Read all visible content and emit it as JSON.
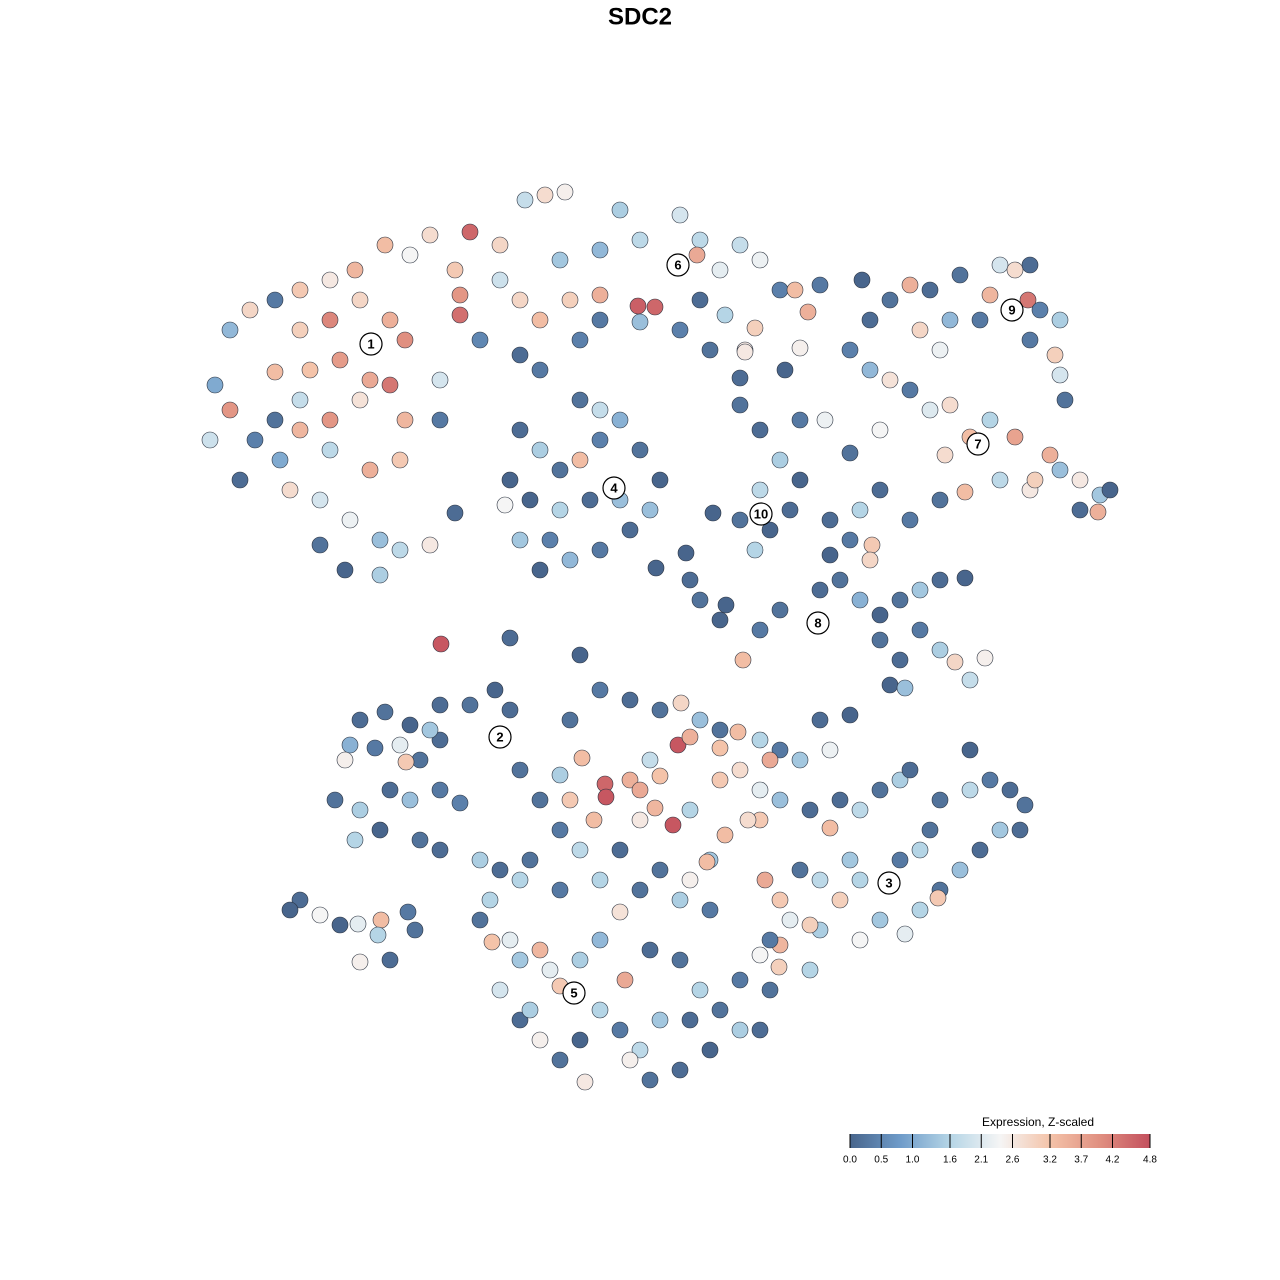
{
  "chart_data": {
    "type": "scatter",
    "title": "SDC2",
    "xlim": [
      0,
      128
    ],
    "ylim": [
      0,
      128
    ],
    "x": [
      23,
      25,
      27.5,
      30,
      33,
      35.5,
      38.5,
      41,
      43,
      30,
      33,
      36,
      39,
      40.5,
      34,
      37,
      39,
      31,
      27.5,
      30,
      33,
      36,
      40.5,
      21.5,
      23,
      21,
      24,
      28,
      30,
      33,
      37,
      40,
      32,
      35,
      38,
      32,
      34.5,
      38,
      40,
      43,
      29,
      44,
      25.5,
      44,
      27.5,
      47,
      50,
      52.5,
      54.5,
      56.5,
      45.5,
      46,
      46,
      50,
      52,
      54,
      57,
      60,
      62,
      64,
      63.8,
      65.5,
      68,
      70,
      69.7,
      72,
      74,
      76,
      78,
      79.5,
      80.8,
      82,
      70,
      72.5,
      75.5,
      60,
      64,
      68,
      71,
      74.5,
      80,
      54,
      58,
      52,
      48,
      56,
      60,
      52,
      54,
      56,
      58,
      60,
      62,
      64,
      66,
      65,
      63,
      60,
      57,
      54,
      52,
      50.5,
      51,
      56,
      59,
      62,
      58,
      60,
      53,
      55,
      74,
      76,
      78,
      80,
      76,
      74,
      77,
      79,
      75.5,
      80,
      82.5,
      100,
      101.5,
      103,
      102.8,
      99,
      96,
      93,
      91,
      92,
      95,
      98,
      104,
      106,
      105.5,
      103,
      87,
      89,
      86.2,
      106,
      106.5,
      94,
      85,
      87,
      89,
      91,
      93,
      95,
      97,
      99,
      101.5,
      105,
      106,
      108,
      110,
      111,
      109.8,
      108,
      103,
      100,
      96.5,
      94,
      91,
      88,
      86,
      85,
      88,
      94.5,
      103.5,
      83,
      85,
      87.2,
      87,
      84,
      86,
      88,
      90,
      92,
      94,
      96.5,
      92,
      94,
      95.5,
      97,
      98.5,
      90,
      88,
      89,
      90.5,
      83,
      82,
      78,
      76,
      74.3,
      72,
      70,
      69,
      72.6,
      36,
      38.5,
      41,
      44,
      47,
      49.5,
      35,
      37.5,
      40,
      42,
      44,
      34.5,
      40.6,
      33.5,
      36,
      39,
      41,
      44,
      35.5,
      38,
      42,
      44,
      46,
      48,
      30,
      32,
      34,
      35.8,
      38.1,
      37.8,
      36,
      39,
      40.8,
      41.5,
      29,
      51,
      52,
      43,
      57,
      60,
      63,
      66,
      68.1,
      70,
      72,
      73.8,
      76,
      78,
      80,
      82,
      85,
      83,
      67.8,
      69,
      72,
      65,
      63,
      60.5,
      60.6,
      58.2,
      56,
      54,
      57,
      64,
      66,
      65.5,
      67.3,
      69,
      72,
      74,
      76,
      77,
      78,
      81,
      76,
      74.8,
      72.5,
      71,
      69,
      66,
      62,
      59.4,
      58,
      56,
      53,
      70.7,
      64,
      84,
      86,
      88,
      90,
      91,
      94,
      97,
      97,
      99,
      101,
      102.5,
      100,
      98,
      96,
      94,
      93.8,
      92,
      90.5,
      88,
      86,
      84,
      82,
      80,
      78,
      79,
      82,
      78,
      77.9,
      81,
      77,
      76,
      93,
      92,
      86,
      90,
      83,
      102,
      81,
      76.5,
      85,
      49,
      48,
      49.2,
      51,
      50,
      52,
      54,
      55,
      56,
      58,
      60,
      62,
      62.5,
      65,
      68,
      70,
      72,
      74,
      76,
      71,
      68,
      65,
      64,
      62,
      60,
      58.5,
      56,
      54,
      52,
      53,
      58,
      66,
      69,
      74,
      77,
      50,
      52,
      56,
      60,
      64,
      68,
      71,
      63,
      44.1,
      51,
      58,
      45.5,
      65.6,
      68.6,
      71.3,
      74,
      78.5,
      74.5
    ],
    "y": [
      95,
      97,
      98,
      99,
      100,
      101,
      103.5,
      102.5,
      104.5,
      95,
      96,
      98,
      96,
      94,
      92,
      90,
      89.5,
      91,
      90.8,
      88,
      86,
      88,
      86,
      89.5,
      87,
      84,
      80,
      82,
      85,
      83,
      81,
      82,
      78,
      76,
      74,
      73.5,
      71,
      70.5,
      73,
      73.5,
      79,
      86,
      84,
      90,
      86,
      104.8,
      103.5,
      108,
      108.5,
      108.8,
      101,
      96.5,
      98.5,
      100,
      98,
      96,
      98,
      103,
      107,
      104,
      97.4,
      97.3,
      106.5,
      104,
      102.5,
      101,
      103.5,
      102,
      99,
      99,
      96.8,
      99.5,
      98,
      96.5,
      95.2,
      96,
      95.8,
      95,
      93,
      93,
      93.2,
      91,
      94,
      92.5,
      94,
      102,
      98.5,
      85,
      83,
      81,
      82,
      84,
      86,
      83,
      80,
      77,
      75,
      73,
      72,
      71,
      74,
      77.5,
      80,
      77,
      78,
      78,
      88,
      87,
      78,
      74,
      87.5,
      85,
      82,
      80,
      79,
      76,
      75,
      77,
      73,
      86,
      86,
      101.5,
      101,
      101.5,
      98,
      98.5,
      100.5,
      99,
      99.5,
      95,
      96,
      96,
      97,
      96,
      92.5,
      94,
      96,
      98,
      100,
      90.5,
      88,
      93,
      93,
      91,
      90,
      89,
      87,
      87.5,
      84.3,
      86,
      84.3,
      82.5,
      81,
      80,
      78.5,
      79,
      76.8,
      77,
      79,
      80,
      78.8,
      78,
      76,
      79,
      77,
      82.7,
      85,
      82.5,
      80,
      76,
      74,
      73.5,
      72,
      70,
      68,
      66.5,
      68,
      69,
      70,
      70.2,
      65,
      63,
      61.8,
      60,
      62.2,
      62,
      64,
      59.5,
      59.2,
      72.5,
      69,
      67,
      65,
      62,
      66,
      68,
      70,
      67.5,
      56,
      56.8,
      55.5,
      57.5,
      57.5,
      59,
      53.5,
      53.2,
      53.5,
      52,
      54,
      52,
      51.8,
      48,
      47,
      49,
      48,
      49,
      44,
      45,
      44,
      43,
      47.7,
      42,
      38,
      36.5,
      35.5,
      35.6,
      36,
      34.5,
      31.8,
      32,
      36.8,
      35,
      37,
      57,
      51,
      55,
      56,
      59,
      58,
      57,
      57.7,
      56,
      55,
      54.8,
      54,
      53,
      52,
      56,
      56.5,
      53,
      53.5,
      54.3,
      53.2,
      52,
      50,
      49.6,
      48.3,
      52.2,
      50.5,
      48,
      48,
      49,
      50.4,
      47.2,
      45.5,
      47,
      50,
      51,
      49,
      52,
      48,
      47,
      46,
      46,
      44.5,
      42,
      40,
      41,
      43,
      46,
      43,
      45,
      42,
      41.8,
      46,
      48,
      47,
      49,
      50,
      51,
      48,
      49,
      53,
      50,
      49,
      47.5,
      45,
      43,
      41,
      39,
      38.2,
      37,
      34.6,
      36,
      34,
      38,
      40,
      41,
      38,
      36,
      35,
      33.5,
      31.3,
      31,
      34,
      32.5,
      45,
      43,
      40,
      42,
      45.2,
      45,
      35.5,
      40,
      42,
      38,
      36,
      33.8,
      34,
      29,
      32,
      33,
      31,
      29.4,
      32,
      34,
      36.8,
      30,
      33,
      32,
      29,
      27,
      25,
      25,
      23,
      21,
      20,
      23,
      25,
      27,
      19.8,
      22,
      24,
      26,
      27,
      24,
      26,
      26,
      30,
      29,
      41,
      40,
      39,
      40,
      39,
      38,
      37,
      22,
      63.6,
      64.2,
      62.5,
      76.7,
      71.2,
      72.7,
      76.7,
      90.2,
      91,
      92.8
    ],
    "values": [
      1.2,
      2.9,
      0.3,
      3.1,
      2.6,
      3.4,
      3.3,
      2.4,
      2.8,
      3.0,
      4.1,
      2.9,
      3.5,
      4.0,
      3.8,
      3.6,
      4.3,
      3.2,
      3.3,
      1.8,
      3.9,
      2.7,
      3.4,
      1.0,
      3.9,
      1.9,
      0.1,
      1.0,
      3.4,
      1.7,
      3.5,
      3.1,
      2.0,
      2.3,
      1.3,
      0.2,
      0.0,
      1.5,
      1.7,
      2.6,
      2.8,
      0.3,
      0.4,
      2.0,
      0.2,
      4.5,
      2.9,
      1.8,
      2.8,
      2.5,
      3.1,
      4.4,
      3.9,
      1.9,
      2.9,
      3.3,
      3.0,
      1.2,
      1.5,
      1.7,
      4.6,
      4.5,
      2.0,
      1.7,
      3.6,
      2.2,
      1.8,
      2.3,
      0.4,
      3.3,
      3.5,
      0.3,
      0.1,
      1.6,
      3.0,
      0.3,
      1.3,
      0.4,
      0.2,
      2.6,
      2.5,
      0.3,
      0.4,
      0.1,
      0.5,
      1.4,
      3.5,
      0.1,
      1.5,
      0.2,
      3.3,
      0.4,
      1.1,
      0.2,
      0.0,
      1.3,
      0.1,
      0.3,
      1.2,
      0.0,
      1.4,
      2.4,
      0.0,
      1.6,
      0.1,
      1.3,
      0.2,
      1.8,
      0.0,
      0.4,
      0.2,
      0.1,
      1.5,
      0.0,
      1.7,
      0.2,
      0.0,
      0.1,
      1.6,
      0.3,
      2.3,
      2.0,
      2.8,
      0.1,
      4.3,
      3.4,
      0.2,
      0.1,
      3.5,
      2.9,
      1.2,
      0.3,
      0.4,
      1.5,
      3.0,
      0.3,
      0.1,
      0.2,
      0.0,
      2.0,
      0.2,
      2.3,
      0.4,
      1.2,
      2.7,
      0.3,
      2.1,
      2.8,
      3.3,
      1.6,
      3.7,
      3.5,
      1.3,
      2.6,
      1.4,
      0.0,
      3.5,
      0.1,
      2.6,
      1.7,
      3.3,
      0.2,
      0.3,
      0.1,
      1.6,
      0.2,
      2.4,
      2.8,
      3.0,
      0.1,
      0.3,
      3.1,
      2.9,
      0.2,
      1.1,
      0.0,
      0.2,
      1.4,
      0.1,
      0.0,
      0.3,
      1.5,
      2.9,
      1.8,
      2.5,
      0.1,
      0.2,
      0.0,
      1.3,
      0.0,
      0.1,
      0.2,
      0.3,
      3.3,
      0.0,
      0.2,
      0.1,
      0.0,
      0.1,
      0.2,
      0.0,
      0.1,
      0.2,
      0.0,
      1.1,
      0.3,
      2.2,
      0.2,
      0.1,
      2.5,
      3.1,
      0.2,
      1.5,
      0.1,
      1.3,
      0.3,
      1.6,
      0.0,
      0.2,
      0.1,
      0.4,
      1.5,
      0.1,
      2.4,
      0.0,
      2.2,
      3.3,
      1.6,
      2.5,
      0.1,
      0.3,
      0.2,
      0.0,
      0.1,
      0.2,
      1.4,
      0.2,
      0.3,
      0.1,
      0.2,
      2.9,
      1.3,
      0.2,
      3.3,
      1.6,
      0.3,
      1.4,
      0.1,
      0.0,
      2.3,
      4.7,
      3.5,
      3.2,
      1.8,
      3.5,
      4.5,
      4.7,
      3.3,
      1.5,
      0.2,
      3.1,
      3.6,
      3.2,
      3.4,
      4.7,
      1.6,
      3.1,
      2.8,
      2.2,
      3.6,
      1.3,
      0.1,
      3.1,
      2.8,
      3.3,
      1.4,
      2.5,
      0.2,
      0.1,
      3.3,
      1.7,
      0.3,
      0.2,
      3.3,
      2.6,
      0.1,
      1.7,
      0.2,
      1.5,
      0.1,
      0.2,
      1.7,
      0.0,
      0.3,
      0.1,
      0.2,
      1.4,
      0.1,
      1.3,
      0.2,
      3.1,
      1.6,
      2.2,
      1.4,
      2.4,
      3.0,
      1.7,
      0.2,
      3.1,
      2.2,
      1.5,
      3.4,
      3.0,
      1.6,
      0.3,
      2.4,
      0.2,
      1.6,
      1.6,
      0.3,
      3.3,
      0.1,
      3.0,
      3.6,
      1.4,
      1.6,
      0.2,
      3.2,
      2.2,
      2.0,
      1.4,
      3.4,
      2.2,
      3.1,
      1.5,
      1.2,
      2.7,
      3.6,
      0.1,
      0.2,
      1.6,
      0.2,
      1.5,
      0.1,
      0.0,
      0.1,
      0.2,
      1.7,
      0.3,
      1.6,
      2.6,
      0.2,
      2.5,
      0.1,
      1.5,
      0.0,
      1.4,
      0.1,
      0.3,
      0.2,
      0.1,
      1.6,
      0.3,
      1.6,
      0.2,
      1.5,
      0.3,
      2.5,
      4.7,
      0.1,
      0.0,
      0.1,
      0.0,
      0.0,
      0.0,
      0.1,
      0.0,
      2.6
    ],
    "cluster_labels": [
      {
        "label": "1",
        "x": 37.1,
        "y": 93.6
      },
      {
        "label": "2",
        "x": 50.0,
        "y": 54.3
      },
      {
        "label": "3",
        "x": 88.9,
        "y": 39.7
      },
      {
        "label": "4",
        "x": 61.4,
        "y": 79.2
      },
      {
        "label": "5",
        "x": 57.4,
        "y": 28.7
      },
      {
        "label": "6",
        "x": 67.8,
        "y": 101.5
      },
      {
        "label": "7",
        "x": 97.8,
        "y": 83.6
      },
      {
        "label": "8",
        "x": 81.8,
        "y": 65.7
      },
      {
        "label": "9",
        "x": 101.2,
        "y": 97.0
      },
      {
        "label": "10",
        "x": 76.1,
        "y": 76.6
      }
    ],
    "colorbar": {
      "title": "Expression, Z-scaled",
      "clim": [
        0,
        4.8
      ],
      "ticks": [
        {
          "value": 0,
          "label": "0.0"
        },
        0.5,
        {
          "value": 1,
          "label": "1.0"
        },
        1.6,
        2.1,
        2.6,
        3.2,
        3.7,
        4.2,
        4.8
      ],
      "colors": [
        "#48658c",
        "#6e9bc9",
        "#b5d5e6",
        "#f5f5f5",
        "#f4c3a9",
        "#e08f80",
        "#c34f5d"
      ]
    }
  }
}
